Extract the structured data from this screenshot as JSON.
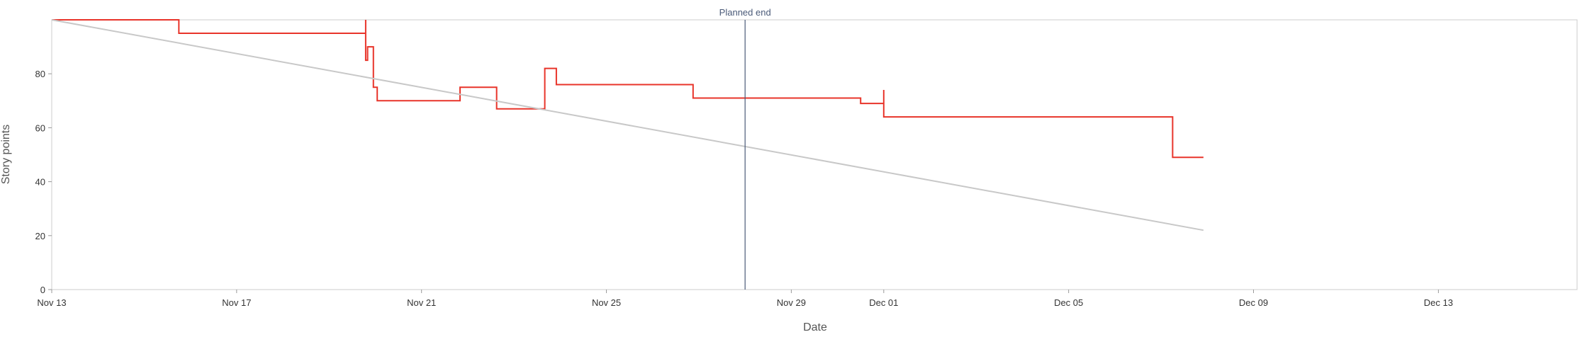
{
  "chart_data": {
    "type": "line",
    "title": "",
    "xlabel": "Date",
    "ylabel": "Story points",
    "x_ticks": [
      "Nov 13",
      "Nov 17",
      "Nov 21",
      "Nov 25",
      "Nov 29",
      "Dec 01",
      "Dec 05",
      "Dec 09",
      "Dec 13"
    ],
    "y_ticks": [
      "0",
      "20",
      "40",
      "60",
      "80"
    ],
    "xlim": [
      "2023-11-13",
      "2023-12-16"
    ],
    "ylim": [
      0,
      100
    ],
    "grid": false,
    "legend": "none",
    "annotations": [
      {
        "label": "Planned end",
        "x": "2023-11-28"
      }
    ],
    "series": [
      {
        "color": "#e8342a",
        "style": "step",
        "points": [
          {
            "x": "2023-11-13",
            "y": 100
          },
          {
            "x": "2023-11-15 18:00",
            "y": 100
          },
          {
            "x": "2023-11-15 18:00",
            "y": 95
          },
          {
            "x": "2023-11-19 19:00",
            "y": 95
          },
          {
            "x": "2023-11-19 19:00",
            "y": 100
          },
          {
            "x": "2023-11-19 19:00",
            "y": 85
          },
          {
            "x": "2023-11-19 20:00",
            "y": 85
          },
          {
            "x": "2023-11-19 20:00",
            "y": 90
          },
          {
            "x": "2023-11-19 23:00",
            "y": 90
          },
          {
            "x": "2023-11-19 23:00",
            "y": 75
          },
          {
            "x": "2023-11-20 01:00",
            "y": 75
          },
          {
            "x": "2023-11-20 01:00",
            "y": 70
          },
          {
            "x": "2023-11-21 20:00",
            "y": 70
          },
          {
            "x": "2023-11-21 20:00",
            "y": 75
          },
          {
            "x": "2023-11-22 15:00",
            "y": 75
          },
          {
            "x": "2023-11-22 15:00",
            "y": 67
          },
          {
            "x": "2023-11-23 16:00",
            "y": 67
          },
          {
            "x": "2023-11-23 16:00",
            "y": 82
          },
          {
            "x": "2023-11-23 22:00",
            "y": 82
          },
          {
            "x": "2023-11-23 22:00",
            "y": 76
          },
          {
            "x": "2023-11-26 21:00",
            "y": 76
          },
          {
            "x": "2023-11-26 21:00",
            "y": 71
          },
          {
            "x": "2023-11-30 12:00",
            "y": 71
          },
          {
            "x": "2023-11-30 12:00",
            "y": 69
          },
          {
            "x": "2023-12-01",
            "y": 69
          },
          {
            "x": "2023-12-01",
            "y": 74
          },
          {
            "x": "2023-12-01",
            "y": 64
          },
          {
            "x": "2023-12-07 06:00",
            "y": 64
          },
          {
            "x": "2023-12-07 06:00",
            "y": 49
          },
          {
            "x": "2023-12-07 22:00",
            "y": 49
          }
        ]
      },
      {
        "color": "#c8c8c8",
        "style": "line",
        "points": [
          {
            "x": "2023-11-13",
            "y": 100
          },
          {
            "x": "2023-12-07 22:00",
            "y": 22
          }
        ]
      }
    ]
  },
  "colors": {
    "remaining": "#e8342a",
    "ideal": "#c8c8c8",
    "planned_end_line": "#4a5a78",
    "frame": "#cccccc"
  }
}
